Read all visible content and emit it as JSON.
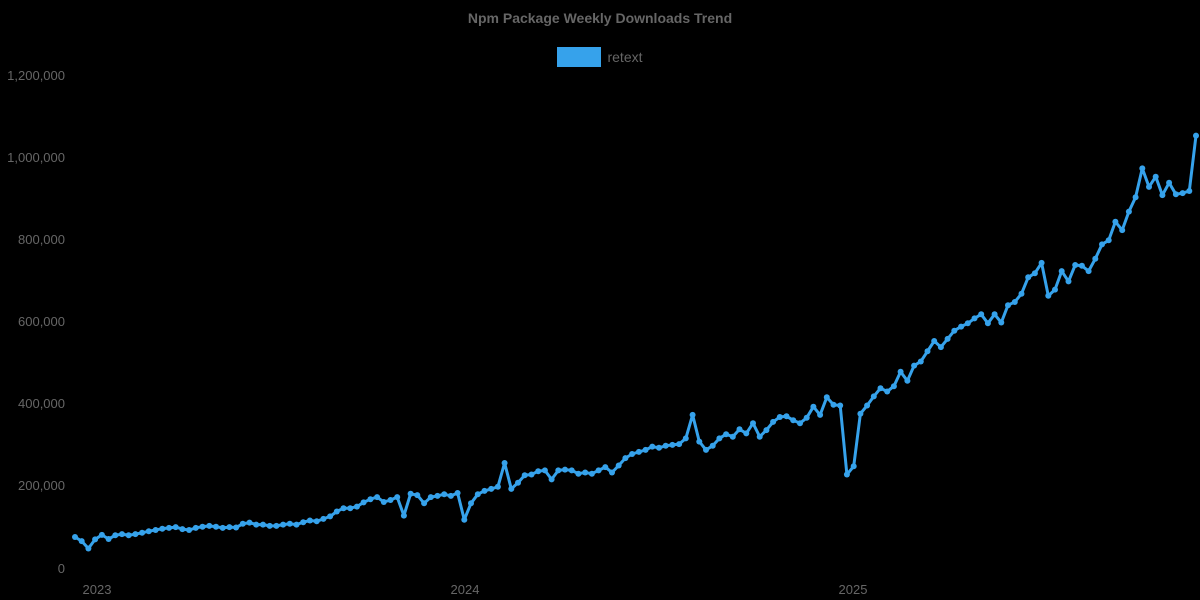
{
  "chart_data": {
    "type": "line",
    "title": "Npm Package Weekly Downloads Trend",
    "xlabel": "",
    "ylabel": "",
    "legend": {
      "position": "top",
      "entries": [
        "retext"
      ]
    },
    "grid": false,
    "ylim": [
      0,
      1200000
    ],
    "y_ticks": [
      "0",
      "200,000",
      "400,000",
      "600,000",
      "800,000",
      "1,000,000",
      "1,200,000"
    ],
    "x_ticks": [
      "2023",
      "2024",
      "2025"
    ],
    "series": [
      {
        "name": "retext",
        "color": "#36a2eb",
        "values": [
          78000,
          68000,
          50000,
          72000,
          83000,
          73000,
          82000,
          85000,
          82000,
          85000,
          88000,
          92000,
          95000,
          98000,
          100000,
          102000,
          97000,
          95000,
          100000,
          103000,
          105000,
          103000,
          100000,
          102000,
          101000,
          110000,
          113000,
          108000,
          108000,
          105000,
          105000,
          108000,
          110000,
          108000,
          114000,
          118000,
          116000,
          122000,
          128000,
          140000,
          148000,
          148000,
          152000,
          162000,
          170000,
          175000,
          163000,
          168000,
          175000,
          130000,
          183000,
          180000,
          160000,
          175000,
          178000,
          182000,
          178000,
          185000,
          120000,
          160000,
          182000,
          190000,
          195000,
          200000,
          258000,
          195000,
          210000,
          228000,
          230000,
          238000,
          240000,
          218000,
          240000,
          242000,
          240000,
          232000,
          235000,
          232000,
          240000,
          248000,
          235000,
          252000,
          270000,
          280000,
          285000,
          290000,
          298000,
          295000,
          300000,
          302000,
          304000,
          318000,
          375000,
          310000,
          290000,
          300000,
          318000,
          328000,
          322000,
          340000,
          330000,
          355000,
          322000,
          338000,
          358000,
          370000,
          372000,
          362000,
          355000,
          368000,
          395000,
          375000,
          418000,
          400000,
          398000,
          230000,
          250000,
          378000,
          398000,
          420000,
          440000,
          432000,
          445000,
          480000,
          458000,
          495000,
          505000,
          530000,
          555000,
          540000,
          560000,
          580000,
          590000,
          598000,
          610000,
          620000,
          598000,
          620000,
          600000,
          642000,
          650000,
          670000,
          710000,
          720000,
          745000,
          665000,
          680000,
          725000,
          700000,
          740000,
          738000,
          725000,
          755000,
          790000,
          800000,
          845000,
          825000,
          870000,
          905000,
          975000,
          930000,
          955000,
          910000,
          940000,
          912000,
          915000,
          920000,
          1055000
        ]
      }
    ]
  }
}
